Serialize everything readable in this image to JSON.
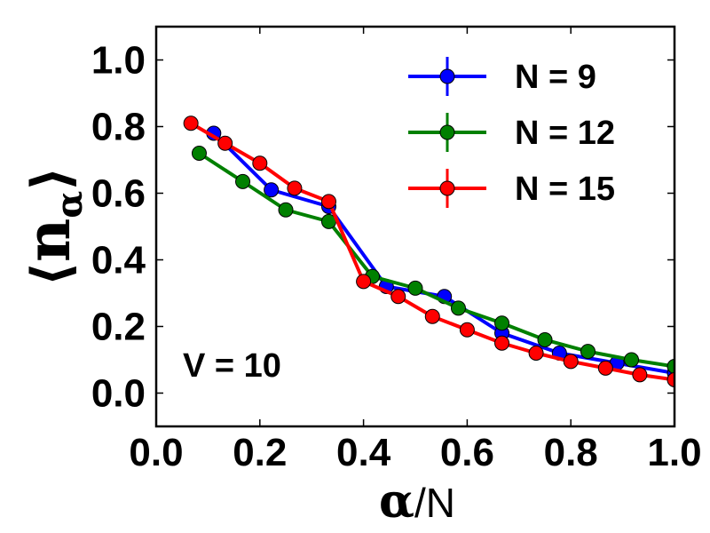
{
  "chart_data": {
    "type": "line",
    "xlabel_symbol": "α",
    "xlabel_rest": "/N",
    "ylabel_open": "⟨",
    "ylabel_main": "n",
    "ylabel_sub": "α",
    "ylabel_close": "⟩",
    "xlim": [
      0.0,
      1.0
    ],
    "ylim": [
      -0.1,
      1.1
    ],
    "xticks": [
      "0.0",
      "0.2",
      "0.4",
      "0.6",
      "0.8",
      "1.0"
    ],
    "yticks": [
      "0.0",
      "0.2",
      "0.4",
      "0.6",
      "0.8",
      "1.0"
    ],
    "annotation": "V = 10",
    "legend_position": "top-right",
    "series": [
      {
        "name": "N = 9",
        "color": "#0000ff",
        "x": [
          0.111,
          0.222,
          0.333,
          0.444,
          0.556,
          0.667,
          0.778,
          0.889,
          1.0
        ],
        "y": [
          0.78,
          0.61,
          0.56,
          0.32,
          0.29,
          0.18,
          0.12,
          0.09,
          0.06
        ]
      },
      {
        "name": "N = 12",
        "color": "#008000",
        "x": [
          0.083,
          0.167,
          0.25,
          0.333,
          0.417,
          0.5,
          0.583,
          0.667,
          0.75,
          0.833,
          0.917,
          1.0
        ],
        "y": [
          0.72,
          0.635,
          0.55,
          0.515,
          0.35,
          0.315,
          0.255,
          0.21,
          0.16,
          0.125,
          0.1,
          0.08
        ]
      },
      {
        "name": "N = 15",
        "color": "#ff0000",
        "x": [
          0.067,
          0.133,
          0.2,
          0.267,
          0.333,
          0.4,
          0.467,
          0.533,
          0.6,
          0.667,
          0.733,
          0.8,
          0.867,
          0.933,
          1.0
        ],
        "y": [
          0.81,
          0.75,
          0.69,
          0.615,
          0.575,
          0.335,
          0.29,
          0.23,
          0.19,
          0.15,
          0.12,
          0.095,
          0.075,
          0.055,
          0.04
        ]
      }
    ]
  }
}
